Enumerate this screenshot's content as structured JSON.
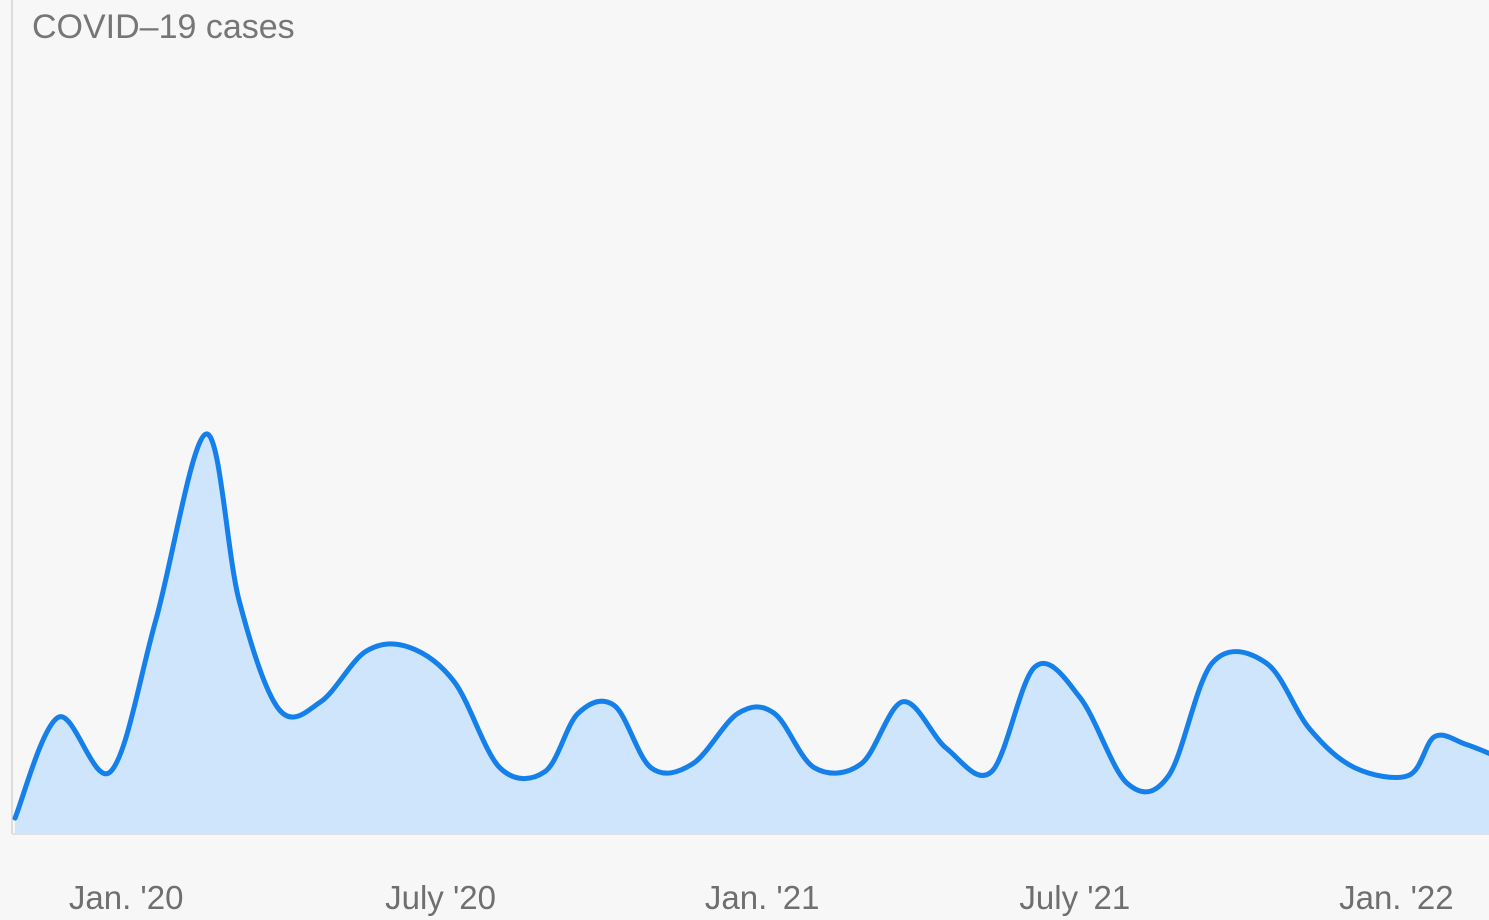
{
  "chart_data": {
    "type": "area",
    "title": "COVID–19 cases",
    "xlabel": "",
    "ylabel": "",
    "x_ticks": [
      "Jan. '20",
      "July '20",
      "Jan. '21",
      "July '21",
      "Jan. '22"
    ],
    "y_ticks": [],
    "grid": false,
    "colors": {
      "line": "#1580e9",
      "fill": "#cfe5fc",
      "axis": "#dcdcdc",
      "text": "#6f6f6f"
    },
    "series": [
      {
        "x": [
          "2019-12-01",
          "2019-12-26",
          "2020-01-25",
          "2020-02-20",
          "2020-03-20",
          "2020-04-08",
          "2020-05-01",
          "2020-05-25",
          "2020-06-20",
          "2020-07-15",
          "2020-08-10",
          "2020-09-05",
          "2020-10-01",
          "2020-10-20",
          "2020-11-10",
          "2020-12-01",
          "2020-12-25",
          "2021-01-20",
          "2021-02-10",
          "2021-03-05",
          "2021-04-01",
          "2021-04-25",
          "2021-05-20",
          "2021-06-15",
          "2021-07-10",
          "2021-08-05",
          "2021-09-01",
          "2021-09-25",
          "2021-10-20",
          "2021-11-20",
          "2021-12-15",
          "2022-01-10",
          "2022-02-10",
          "2022-02-25",
          "2022-03-15",
          "2022-04-01"
        ],
        "values": [
          1,
          27,
          13,
          52,
          100,
          57,
          29,
          31,
          44,
          45,
          36,
          14,
          13,
          28,
          30,
          14,
          15,
          28,
          28,
          14,
          15,
          31,
          19,
          13,
          40,
          32,
          10,
          12,
          41,
          41,
          24,
          14,
          12,
          22,
          20,
          17
        ]
      }
    ]
  }
}
